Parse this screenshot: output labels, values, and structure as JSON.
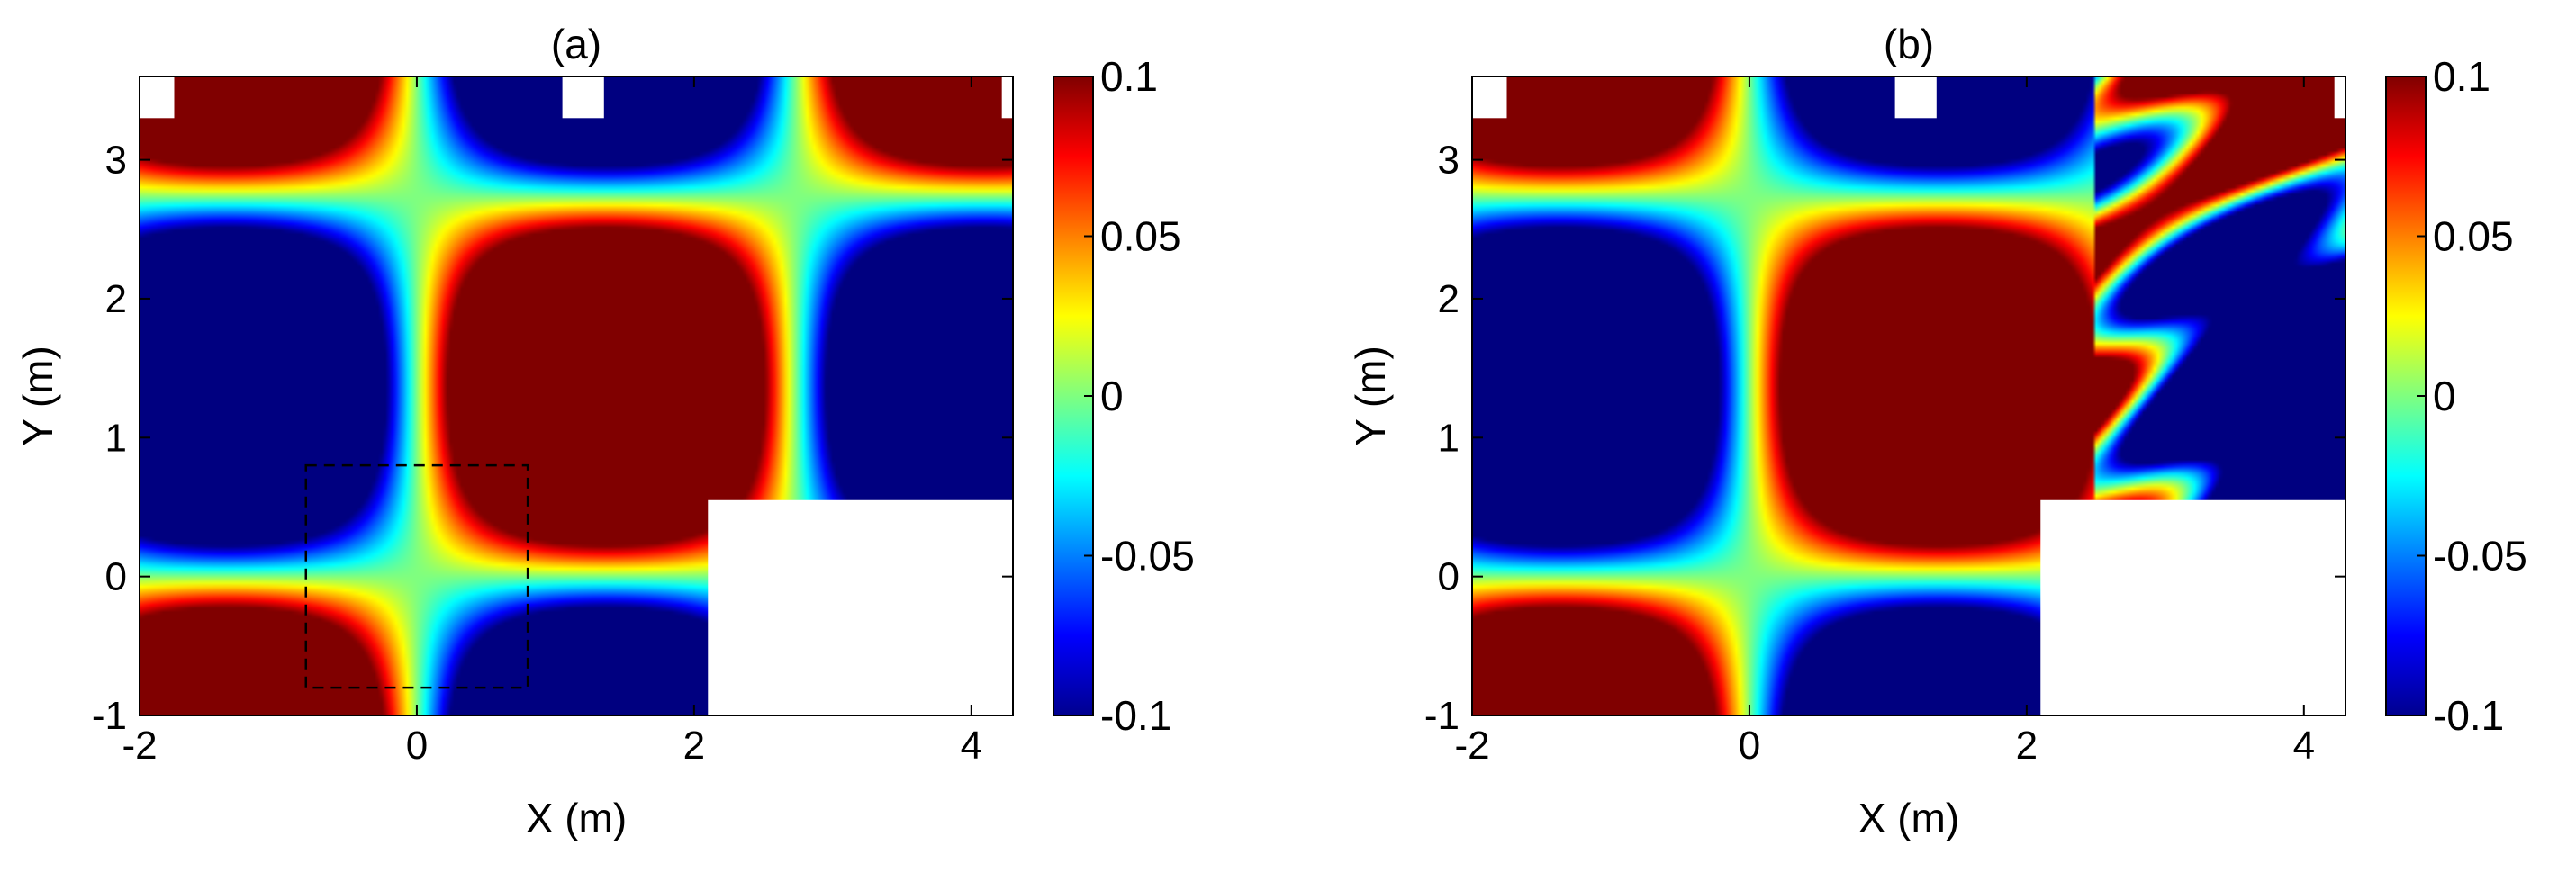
{
  "figure": {
    "panels": [
      {
        "id": "a",
        "title": "(a)",
        "xlabel": "X (m)",
        "ylabel": "Y (m)"
      },
      {
        "id": "b",
        "title": "(b)",
        "xlabel": "X (m)",
        "ylabel": "Y (m)"
      }
    ]
  },
  "chart_data": [
    {
      "type": "heatmap",
      "title": "(a)",
      "xlabel": "X (m)",
      "ylabel": "Y (m)",
      "xlim": [
        -2,
        4.3
      ],
      "ylim": [
        -1,
        3.6
      ],
      "xticks": [
        -2,
        0,
        2,
        4
      ],
      "yticks": [
        -1,
        0,
        1,
        2,
        3
      ],
      "colormap": "jet",
      "clim": [
        -0.1,
        0.1
      ],
      "colorbar_ticks": [
        "0.1",
        "0.05",
        "0",
        "-0.05",
        "-0.1"
      ],
      "masked_regions": [
        {
          "x": [
            2.1,
            4.3
          ],
          "y": [
            -1,
            0.55
          ]
        },
        {
          "x": [
            -2,
            -1.75
          ],
          "y": [
            3.3,
            3.6
          ]
        },
        {
          "x": [
            1.05,
            1.35
          ],
          "y": [
            3.3,
            3.6
          ]
        },
        {
          "x": [
            4.22,
            4.3
          ],
          "y": [
            3.3,
            3.6
          ]
        }
      ],
      "annotation": {
        "kind": "dashed-box",
        "x": [
          -0.8,
          0.8
        ],
        "y": [
          -0.8,
          0.8
        ]
      }
    },
    {
      "type": "heatmap",
      "title": "(b)",
      "xlabel": "X (m)",
      "ylabel": "Y (m)",
      "xlim": [
        -2,
        4.3
      ],
      "ylim": [
        -1,
        3.6
      ],
      "xticks": [
        -2,
        0,
        2,
        4
      ],
      "yticks": [
        -1,
        0,
        1,
        2,
        3
      ],
      "colormap": "jet",
      "clim": [
        -0.1,
        0.1
      ],
      "colorbar_ticks": [
        "0.1",
        "0.05",
        "0",
        "-0.05",
        "-0.1"
      ],
      "masked_regions": [
        {
          "x": [
            2.1,
            4.3
          ],
          "y": [
            -1,
            0.55
          ]
        },
        {
          "x": [
            -2,
            -1.75
          ],
          "y": [
            3.3,
            3.6
          ]
        },
        {
          "x": [
            1.05,
            1.35
          ],
          "y": [
            3.3,
            3.6
          ]
        },
        {
          "x": [
            4.22,
            4.3
          ],
          "y": [
            3.3,
            3.6
          ]
        }
      ]
    }
  ]
}
